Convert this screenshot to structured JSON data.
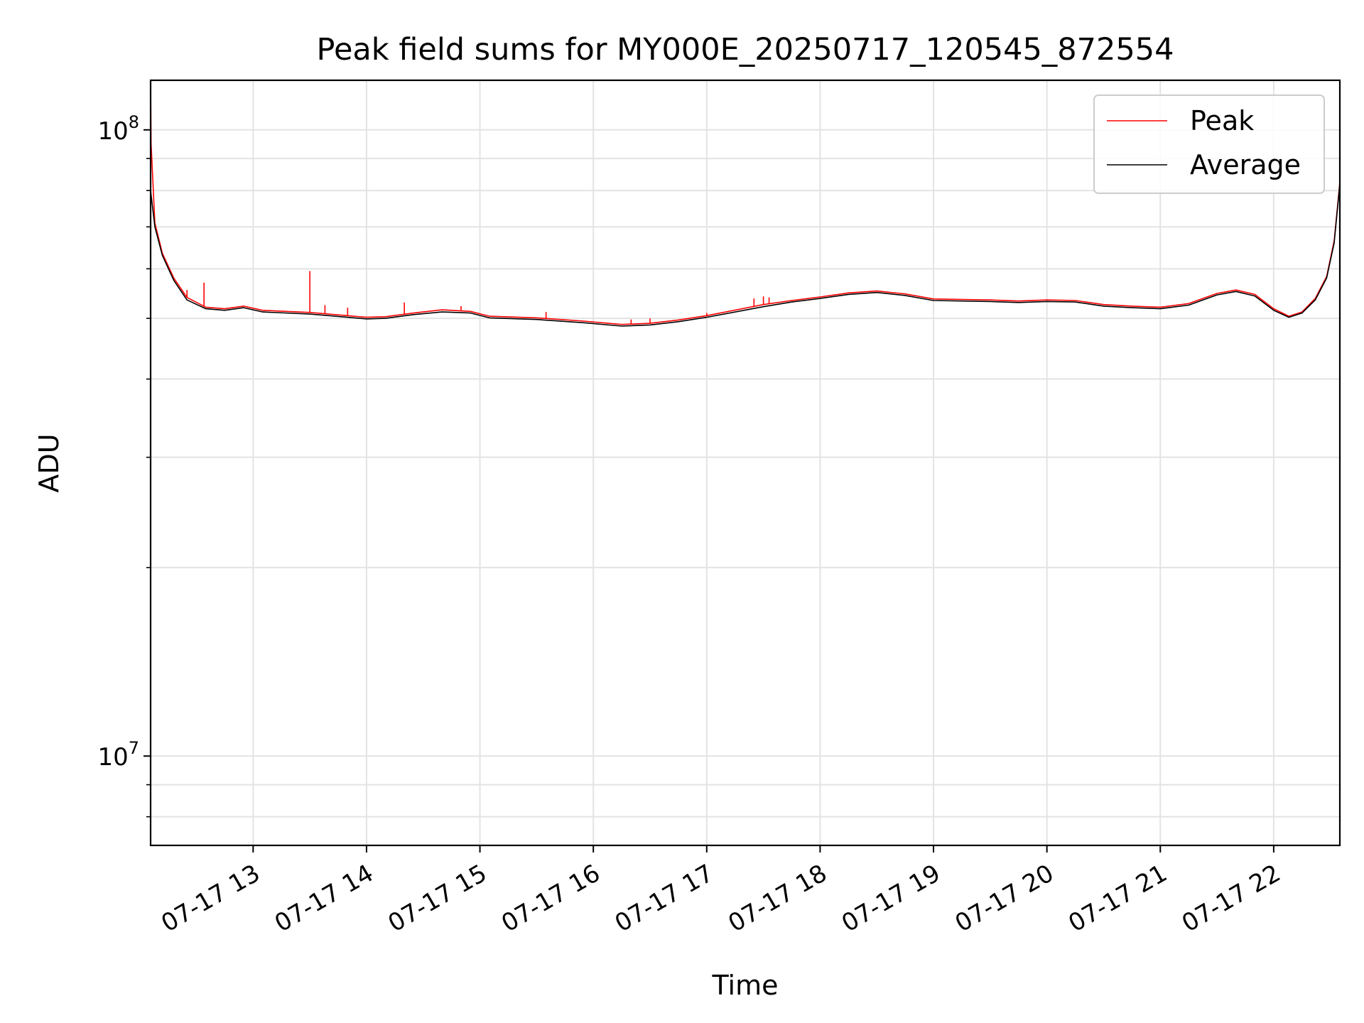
{
  "chart_data": {
    "type": "line",
    "title": "Peak field sums for MY000E_20250717_120545_872554",
    "xlabel": "Time",
    "ylabel": "ADU",
    "y_scale": "log",
    "ylim": [
      7200000,
      120000000
    ],
    "x_start_time": "2025-07-17 12:05:45",
    "x_end_time": "2025-07-17 22:35:00",
    "x_ticks": [
      {
        "time": "2025-07-17 13:00",
        "label": "07-17 13"
      },
      {
        "time": "2025-07-17 14:00",
        "label": "07-17 14"
      },
      {
        "time": "2025-07-17 15:00",
        "label": "07-17 15"
      },
      {
        "time": "2025-07-17 16:00",
        "label": "07-17 16"
      },
      {
        "time": "2025-07-17 17:00",
        "label": "07-17 17"
      },
      {
        "time": "2025-07-17 18:00",
        "label": "07-17 18"
      },
      {
        "time": "2025-07-17 19:00",
        "label": "07-17 19"
      },
      {
        "time": "2025-07-17 20:00",
        "label": "07-17 20"
      },
      {
        "time": "2025-07-17 21:00",
        "label": "07-17 21"
      },
      {
        "time": "2025-07-17 22:00",
        "label": "07-17 22"
      }
    ],
    "y_major_ticks": [
      {
        "value": 10000000,
        "base": "10",
        "exp": "7"
      },
      {
        "value": 100000000,
        "base": "10",
        "exp": "8"
      }
    ],
    "y_minor_ticks": [
      8000000,
      9000000,
      20000000,
      30000000,
      40000000,
      50000000,
      60000000,
      70000000,
      80000000,
      90000000
    ],
    "grid": true,
    "legend_position": "top-right",
    "series": [
      {
        "name": "Average",
        "color": "#000000",
        "points": [
          [
            "2025-07-17 12:05:45",
            80000000
          ],
          [
            "2025-07-17 12:08",
            70000000
          ],
          [
            "2025-07-17 12:12",
            63000000
          ],
          [
            "2025-07-17 12:18",
            57500000
          ],
          [
            "2025-07-17 12:25",
            53500000
          ],
          [
            "2025-07-17 12:35",
            51800000
          ],
          [
            "2025-07-17 12:45",
            51500000
          ],
          [
            "2025-07-17 12:55",
            52000000
          ],
          [
            "2025-07-17 13:05",
            51200000
          ],
          [
            "2025-07-17 13:30",
            50800000
          ],
          [
            "2025-07-17 13:50",
            50200000
          ],
          [
            "2025-07-17 14:00",
            49900000
          ],
          [
            "2025-07-17 14:10",
            50000000
          ],
          [
            "2025-07-17 14:25",
            50700000
          ],
          [
            "2025-07-17 14:40",
            51200000
          ],
          [
            "2025-07-17 14:55",
            51000000
          ],
          [
            "2025-07-17 15:05",
            50100000
          ],
          [
            "2025-07-17 15:30",
            49800000
          ],
          [
            "2025-07-17 15:55",
            49200000
          ],
          [
            "2025-07-17 16:15",
            48600000
          ],
          [
            "2025-07-17 16:30",
            48800000
          ],
          [
            "2025-07-17 16:45",
            49400000
          ],
          [
            "2025-07-17 17:00",
            50200000
          ],
          [
            "2025-07-17 17:30",
            52200000
          ],
          [
            "2025-07-17 17:45",
            53100000
          ],
          [
            "2025-07-17 18:00",
            53800000
          ],
          [
            "2025-07-17 18:15",
            54600000
          ],
          [
            "2025-07-17 18:30",
            55000000
          ],
          [
            "2025-07-17 18:45",
            54400000
          ],
          [
            "2025-07-17 19:00",
            53400000
          ],
          [
            "2025-07-17 19:30",
            53200000
          ],
          [
            "2025-07-17 19:45",
            53000000
          ],
          [
            "2025-07-17 20:00",
            53200000
          ],
          [
            "2025-07-17 20:15",
            53100000
          ],
          [
            "2025-07-17 20:30",
            52300000
          ],
          [
            "2025-07-17 20:45",
            52000000
          ],
          [
            "2025-07-17 21:00",
            51800000
          ],
          [
            "2025-07-17 21:15",
            52500000
          ],
          [
            "2025-07-17 21:30",
            54500000
          ],
          [
            "2025-07-17 21:40",
            55200000
          ],
          [
            "2025-07-17 21:50",
            54300000
          ],
          [
            "2025-07-17 22:00",
            51500000
          ],
          [
            "2025-07-17 22:08",
            50200000
          ],
          [
            "2025-07-17 22:15",
            51000000
          ],
          [
            "2025-07-17 22:22",
            53500000
          ],
          [
            "2025-07-17 22:28",
            58000000
          ],
          [
            "2025-07-17 22:32",
            66000000
          ],
          [
            "2025-07-17 22:35",
            82000000
          ]
        ]
      },
      {
        "name": "Peak",
        "color": "#ff0000",
        "points": [
          [
            "2025-07-17 12:05:45",
            120000000
          ],
          [
            "2025-07-17 12:06",
            95000000
          ],
          [
            "2025-07-17 12:08",
            71000000
          ],
          [
            "2025-07-17 12:12",
            63500000
          ],
          [
            "2025-07-17 12:18",
            58000000
          ],
          [
            "2025-07-17 12:25",
            54000000
          ],
          [
            "2025-07-17 12:35",
            52100000
          ],
          [
            "2025-07-17 12:45",
            51800000
          ],
          [
            "2025-07-17 12:55",
            52300000
          ],
          [
            "2025-07-17 13:05",
            51500000
          ],
          [
            "2025-07-17 13:30",
            51100000
          ],
          [
            "2025-07-17 13:50",
            50500000
          ],
          [
            "2025-07-17 14:00",
            50200000
          ],
          [
            "2025-07-17 14:10",
            50300000
          ],
          [
            "2025-07-17 14:25",
            51000000
          ],
          [
            "2025-07-17 14:40",
            51600000
          ],
          [
            "2025-07-17 14:55",
            51300000
          ],
          [
            "2025-07-17 15:05",
            50400000
          ],
          [
            "2025-07-17 15:30",
            50100000
          ],
          [
            "2025-07-17 15:55",
            49500000
          ],
          [
            "2025-07-17 16:15",
            48900000
          ],
          [
            "2025-07-17 16:30",
            49100000
          ],
          [
            "2025-07-17 16:45",
            49700000
          ],
          [
            "2025-07-17 17:00",
            50500000
          ],
          [
            "2025-07-17 17:30",
            52600000
          ],
          [
            "2025-07-17 17:45",
            53400000
          ],
          [
            "2025-07-17 18:00",
            54100000
          ],
          [
            "2025-07-17 18:15",
            54900000
          ],
          [
            "2025-07-17 18:30",
            55300000
          ],
          [
            "2025-07-17 18:45",
            54700000
          ],
          [
            "2025-07-17 19:00",
            53700000
          ],
          [
            "2025-07-17 19:30",
            53500000
          ],
          [
            "2025-07-17 19:45",
            53300000
          ],
          [
            "2025-07-17 20:00",
            53500000
          ],
          [
            "2025-07-17 20:15",
            53400000
          ],
          [
            "2025-07-17 20:30",
            52600000
          ],
          [
            "2025-07-17 20:45",
            52300000
          ],
          [
            "2025-07-17 21:00",
            52100000
          ],
          [
            "2025-07-17 21:15",
            52800000
          ],
          [
            "2025-07-17 21:30",
            54800000
          ],
          [
            "2025-07-17 21:40",
            55500000
          ],
          [
            "2025-07-17 21:50",
            54600000
          ],
          [
            "2025-07-17 22:00",
            51800000
          ],
          [
            "2025-07-17 22:08",
            50400000
          ],
          [
            "2025-07-17 22:15",
            51200000
          ],
          [
            "2025-07-17 22:22",
            53800000
          ],
          [
            "2025-07-17 22:28",
            58300000
          ],
          [
            "2025-07-17 22:32",
            66500000
          ],
          [
            "2025-07-17 22:35",
            82500000
          ]
        ],
        "spikes": [
          [
            "2025-07-17 12:25",
            55500000
          ],
          [
            "2025-07-17 12:34",
            57000000
          ],
          [
            "2025-07-17 13:30",
            59500000
          ],
          [
            "2025-07-17 13:38",
            52500000
          ],
          [
            "2025-07-17 13:50",
            52000000
          ],
          [
            "2025-07-17 14:20",
            53000000
          ],
          [
            "2025-07-17 14:50",
            52300000
          ],
          [
            "2025-07-17 15:35",
            51200000
          ],
          [
            "2025-07-17 16:20",
            49800000
          ],
          [
            "2025-07-17 16:30",
            50000000
          ],
          [
            "2025-07-17 17:00",
            51000000
          ],
          [
            "2025-07-17 17:25",
            53800000
          ],
          [
            "2025-07-17 17:30",
            54200000
          ],
          [
            "2025-07-17 17:33",
            54000000
          ]
        ]
      }
    ]
  }
}
